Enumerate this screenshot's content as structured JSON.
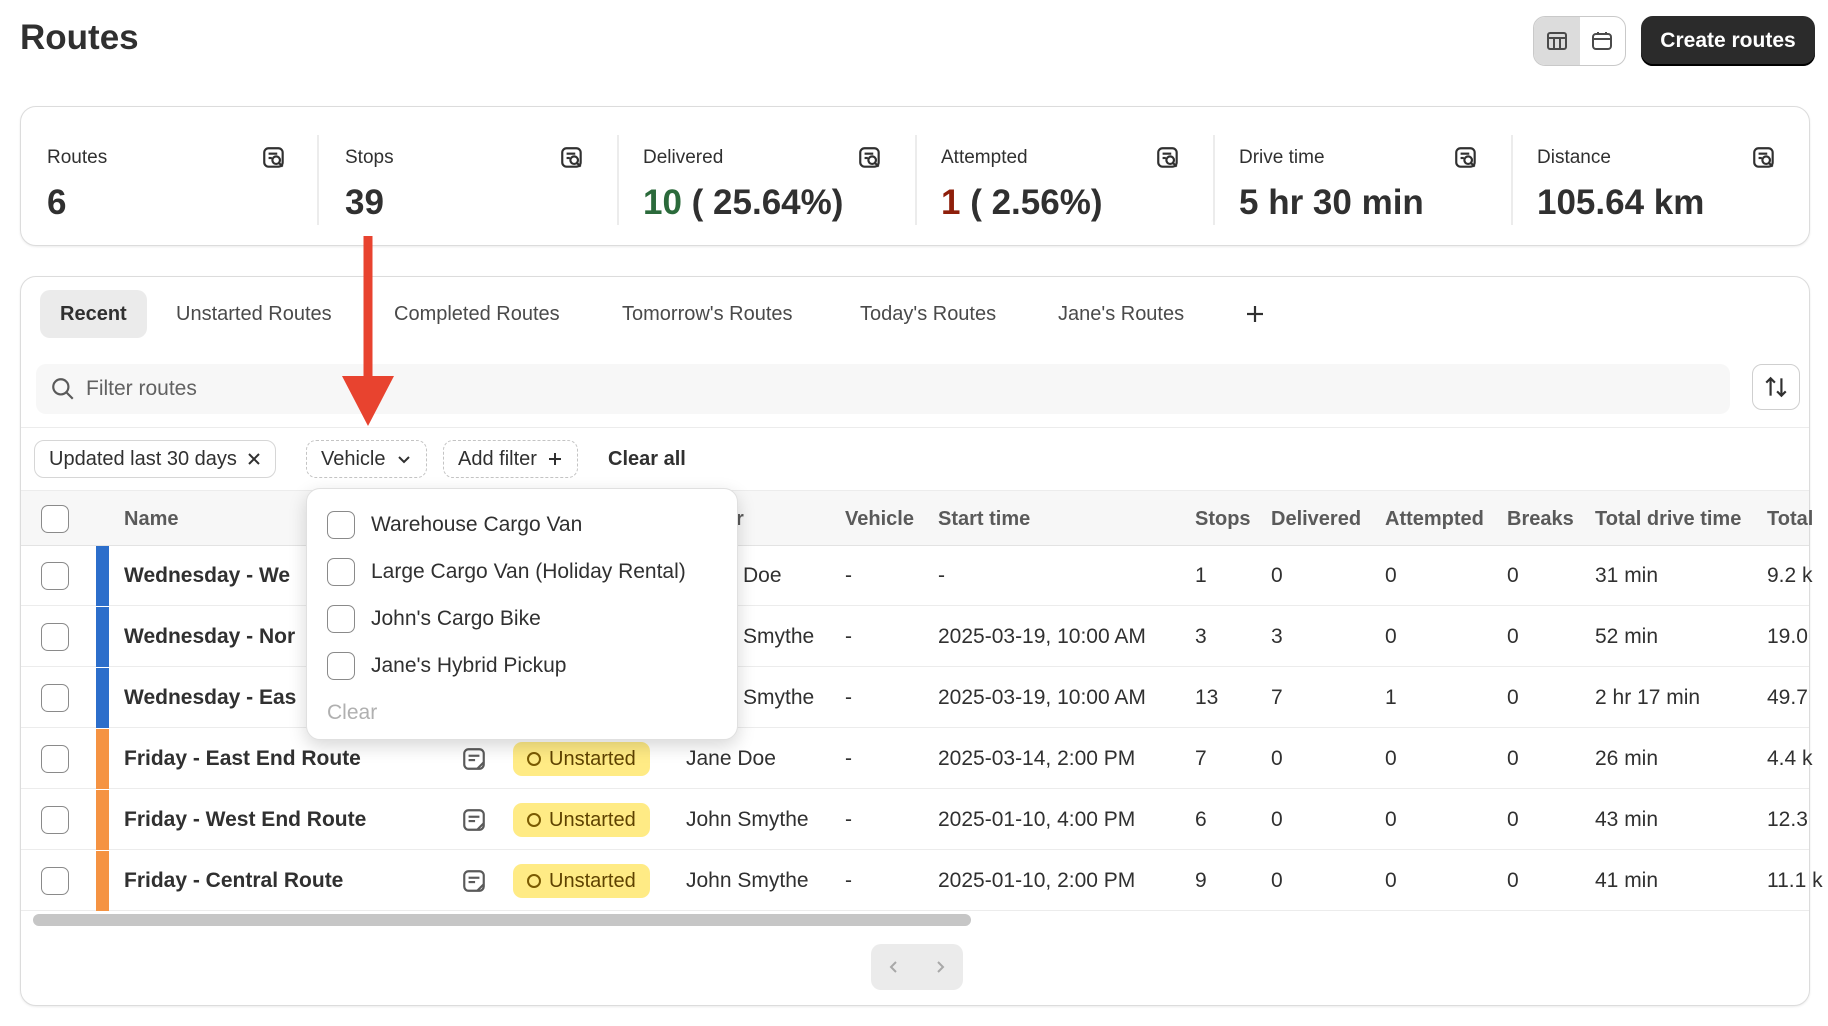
{
  "header": {
    "title": "Routes",
    "create_label": "Create routes"
  },
  "summary": [
    {
      "label": "Routes",
      "value": "6",
      "value_extra": ""
    },
    {
      "label": "Stops",
      "value": "39",
      "value_extra": ""
    },
    {
      "label": "Delivered",
      "value": "10",
      "value_extra": " ( 25.64%)"
    },
    {
      "label": "Attempted",
      "value": "1",
      "value_extra": " ( 2.56%)"
    },
    {
      "label": "Drive time",
      "value": "5 hr 30 min",
      "value_extra": ""
    },
    {
      "label": "Distance",
      "value": "105.64 km",
      "value_extra": ""
    }
  ],
  "tabs": [
    "Recent",
    "Unstarted Routes",
    "Completed Routes",
    "Tomorrow's Routes",
    "Today's Routes",
    "Jane's Routes"
  ],
  "search": {
    "placeholder": "Filter routes"
  },
  "filters": {
    "updated": "Updated last 30 days",
    "vehicle": "Vehicle",
    "add": "Add filter",
    "clear_all": "Clear all"
  },
  "table": {
    "columns": [
      "Name",
      "r",
      "Vehicle",
      "Start time",
      "Stops",
      "Delivered",
      "Attempted",
      "Breaks",
      "Total drive time",
      "Total"
    ],
    "rows": [
      {
        "name": "Wednesday - We",
        "status": "",
        "driver": "Doe",
        "vehicle": "-",
        "start": "-",
        "stops": "1",
        "delivered": "0",
        "attempted": "0",
        "breaks": "0",
        "drive": "31 min",
        "distance": "9.2 k",
        "color": "#2c6ecb"
      },
      {
        "name": "Wednesday - Nor",
        "status": "",
        "driver": "Smythe",
        "vehicle": "-",
        "start": "2025-03-19, 10:00 AM",
        "stops": "3",
        "delivered": "3",
        "attempted": "0",
        "breaks": "0",
        "drive": "52 min",
        "distance": "19.0",
        "color": "#2c6ecb"
      },
      {
        "name": "Wednesday - Eas",
        "status": "",
        "driver": "Smythe",
        "vehicle": "-",
        "start": "2025-03-19, 10:00 AM",
        "stops": "13",
        "delivered": "7",
        "attempted": "1",
        "breaks": "0",
        "drive": "2 hr 17 min",
        "distance": "49.7",
        "color": "#2c6ecb"
      },
      {
        "name": "Friday - East End Route",
        "status": "Unstarted",
        "driver": "Jane Doe",
        "vehicle": "-",
        "start": "2025-03-14, 2:00 PM",
        "stops": "7",
        "delivered": "0",
        "attempted": "0",
        "breaks": "0",
        "drive": "26 min",
        "distance": "4.4 k",
        "color": "#f59342"
      },
      {
        "name": "Friday - West End Route",
        "status": "Unstarted",
        "driver": "John Smythe",
        "vehicle": "-",
        "start": "2025-01-10, 4:00 PM",
        "stops": "6",
        "delivered": "0",
        "attempted": "0",
        "breaks": "0",
        "drive": "43 min",
        "distance": "12.3",
        "color": "#f59342"
      },
      {
        "name": "Friday - Central Route",
        "status": "Unstarted",
        "driver": "John Smythe",
        "vehicle": "-",
        "start": "2025-01-10, 2:00 PM",
        "stops": "9",
        "delivered": "0",
        "attempted": "0",
        "breaks": "0",
        "drive": "41 min",
        "distance": "11.1 k",
        "color": "#f59342"
      }
    ]
  },
  "vehicle_dropdown": {
    "options": [
      "Warehouse Cargo Van",
      "Large Cargo Van (Holiday Rental)",
      "John's Cargo Bike",
      "Jane's Hybrid Pickup"
    ],
    "clear": "Clear"
  },
  "colors": {
    "accent_dark": "#2b2b2b",
    "delivered_green": "#2b6a3b",
    "attempted_red": "#8e1f0b",
    "annotation_arrow": "#e8432f",
    "badge_yellow": "#ffeb85"
  }
}
